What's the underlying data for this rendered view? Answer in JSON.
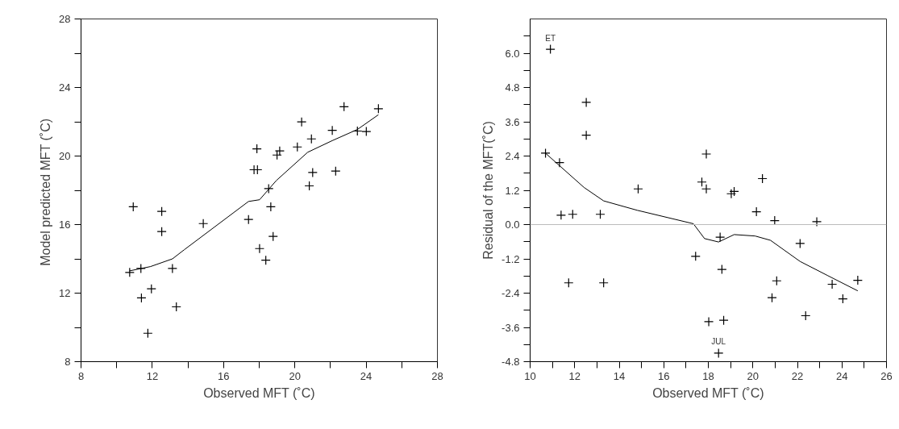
{
  "chart_data": [
    {
      "type": "scatter",
      "xlabel": "Observed MFT (˚C)",
      "ylabel": "Model predicted MFT  (˚C)",
      "xlim": [
        8,
        28
      ],
      "ylim": [
        8,
        28
      ],
      "xticks": [
        8,
        {
          "value": 10,
          "label": null
        },
        12,
        {
          "value": 14,
          "label": null
        },
        16,
        {
          "value": 18,
          "label": null
        },
        20,
        {
          "value": 22,
          "label": null
        },
        24,
        {
          "value": 26,
          "label": null
        },
        28
      ],
      "yticks": [
        8,
        {
          "value": 10,
          "label": null
        },
        12,
        {
          "value": 14,
          "label": null
        },
        16,
        {
          "value": 18,
          "label": null
        },
        20,
        {
          "value": 22,
          "label": null
        },
        24,
        {
          "value": 26,
          "label": null
        },
        28
      ],
      "grid": false,
      "series": [
        {
          "marker": "cross",
          "color": "#000000",
          "x": [
            10.93,
            12.53,
            12.53,
            14.86,
            17.4,
            17.87,
            17.71,
            17.9,
            18.53,
            18.65,
            18.78,
            18.02,
            19.0,
            19.15,
            20.14,
            20.38,
            20.81,
            20.93,
            21.0,
            22.1,
            22.29,
            22.76,
            23.51,
            24.01,
            24.69,
            18.37,
            10.73,
            11.36,
            13.13,
            11.95,
            11.39,
            13.35,
            11.75
          ],
          "values": [
            17.04,
            16.77,
            15.59,
            16.06,
            16.3,
            20.42,
            19.2,
            19.2,
            18.1,
            17.04,
            15.31,
            14.6,
            20.06,
            20.3,
            20.53,
            21.99,
            18.26,
            21.0,
            19.04,
            21.5,
            19.12,
            22.88,
            21.46,
            21.43,
            22.76,
            13.92,
            13.21,
            13.44,
            13.44,
            12.25,
            11.72,
            11.2,
            9.66
          ]
        },
        {
          "type": "line",
          "color": "#000000",
          "x": [
            10.73,
            11.9,
            13.13,
            13.79,
            17.4,
            18.02,
            18.96,
            20.72,
            22.1,
            23.51,
            24.69
          ],
          "values": [
            13.3,
            13.55,
            14.0,
            14.53,
            17.35,
            17.45,
            18.57,
            20.22,
            20.9,
            21.55,
            22.41
          ]
        }
      ]
    },
    {
      "type": "scatter",
      "xlabel": "Observed MFT (˚C)",
      "ylabel": "Residual of the MFT(˚C)",
      "xlim": [
        10,
        26
      ],
      "ylim": [
        -4.8,
        7.2
      ],
      "xticks": [
        10,
        {
          "value": 11,
          "label": null
        },
        12,
        {
          "value": 13,
          "label": null
        },
        14,
        {
          "value": 15,
          "label": null
        },
        16,
        {
          "value": 17,
          "label": null
        },
        18,
        {
          "value": 19,
          "label": null
        },
        20,
        {
          "value": 21,
          "label": null
        },
        22,
        {
          "value": 23,
          "label": null
        },
        24,
        {
          "value": 25,
          "label": null
        },
        26
      ],
      "yticks": [
        {
          "value": -4.8,
          "label": "-4.8"
        },
        {
          "value": -4.2,
          "label": null
        },
        {
          "value": -3.6,
          "label": "-3.6"
        },
        {
          "value": -3.0,
          "label": null
        },
        {
          "value": -2.4,
          "label": "-2.4"
        },
        {
          "value": -1.8,
          "label": null
        },
        {
          "value": -1.2,
          "label": "-1.2"
        },
        {
          "value": -0.6,
          "label": null
        },
        {
          "value": 0,
          "label": "0.0"
        },
        {
          "value": 0.6,
          "label": null
        },
        {
          "value": 1.2,
          "label": "1.2"
        },
        {
          "value": 1.8,
          "label": null
        },
        {
          "value": 2.4,
          "label": "2.4"
        },
        {
          "value": 3.0,
          "label": null
        },
        {
          "value": 3.6,
          "label": "3.6"
        },
        {
          "value": 4.2,
          "label": null
        },
        {
          "value": 4.8,
          "label": "4.8"
        },
        {
          "value": 5.4,
          "label": null
        },
        {
          "value": 6.0,
          "label": "6.0"
        },
        {
          "value": 6.6,
          "label": null
        }
      ],
      "grid": false,
      "ref_lines": [
        {
          "axis": "y",
          "value": 0,
          "label": null,
          "color": "#bbbbbb"
        }
      ],
      "annotations": [
        {
          "text": "ET",
          "x": 10.91,
          "y": 6.14
        },
        {
          "text": "JUL",
          "x": 18.46,
          "y": -4.5
        }
      ],
      "series": [
        {
          "marker": "cross",
          "color": "#000000",
          "x": [
            10.91,
            10.69,
            11.32,
            11.39,
            11.91,
            13.15,
            12.52,
            12.52,
            14.85,
            17.91,
            17.71,
            17.91,
            19.03,
            19.16,
            20.43,
            20.16,
            20.98,
            22.87,
            18.53,
            22.12,
            17.43,
            18.61,
            11.73,
            13.3,
            21.07,
            20.86,
            23.56,
            24.04,
            24.71,
            22.37,
            18.02,
            18.69,
            18.46
          ],
          "values": [
            6.14,
            2.5,
            2.17,
            0.33,
            0.36,
            0.36,
            4.28,
            3.13,
            1.25,
            2.47,
            1.49,
            1.25,
            1.08,
            1.16,
            1.61,
            0.45,
            0.14,
            0.1,
            -0.44,
            -0.66,
            -1.11,
            -1.57,
            -2.04,
            -2.04,
            -1.97,
            -2.56,
            -2.09,
            -2.6,
            -1.95,
            -3.19,
            -3.4,
            -3.35,
            -4.5
          ]
        },
        {
          "type": "line",
          "color": "#000000",
          "x": [
            10.69,
            12.42,
            13.3,
            14.81,
            17.33,
            17.83,
            18.46,
            19.16,
            20.1,
            20.79,
            22.12,
            23.37,
            24.71
          ],
          "values": [
            2.5,
            1.3,
            0.83,
            0.5,
            0.03,
            -0.49,
            -0.61,
            -0.35,
            -0.4,
            -0.55,
            -1.29,
            -1.79,
            -2.32
          ]
        }
      ]
    }
  ]
}
